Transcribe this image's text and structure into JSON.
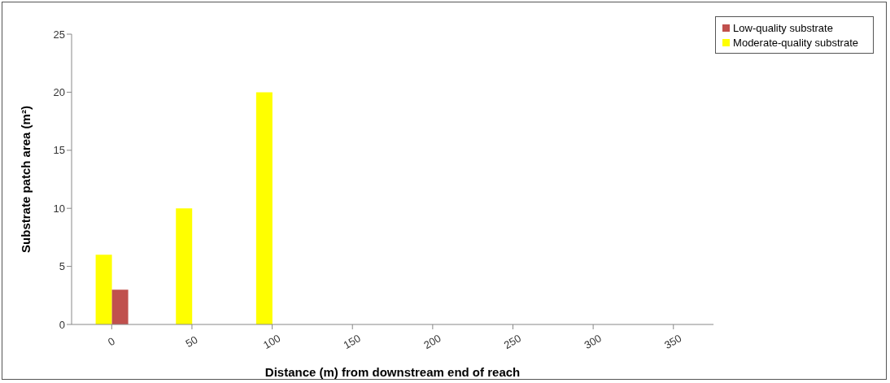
{
  "chart_data": {
    "type": "bar",
    "xlabel": "Distance (m) from downstream end of reach",
    "ylabel": "Substrate patch area (m²)",
    "categories": [
      "0",
      "50",
      "100",
      "150",
      "200",
      "250",
      "300",
      "350"
    ],
    "series": [
      {
        "name": "Moderate-quality substrate",
        "color": "#ffff00",
        "values": [
          6,
          10,
          20,
          0,
          0,
          0,
          0,
          0
        ]
      },
      {
        "name": "Low-quality substrate",
        "color": "#c0504d",
        "values": [
          3,
          0,
          0,
          0,
          0,
          0,
          0,
          0
        ]
      }
    ],
    "ylim": [
      0,
      25
    ],
    "yticks": [
      0,
      5,
      10,
      15,
      20,
      25
    ],
    "grid": false,
    "legend": "top right"
  }
}
